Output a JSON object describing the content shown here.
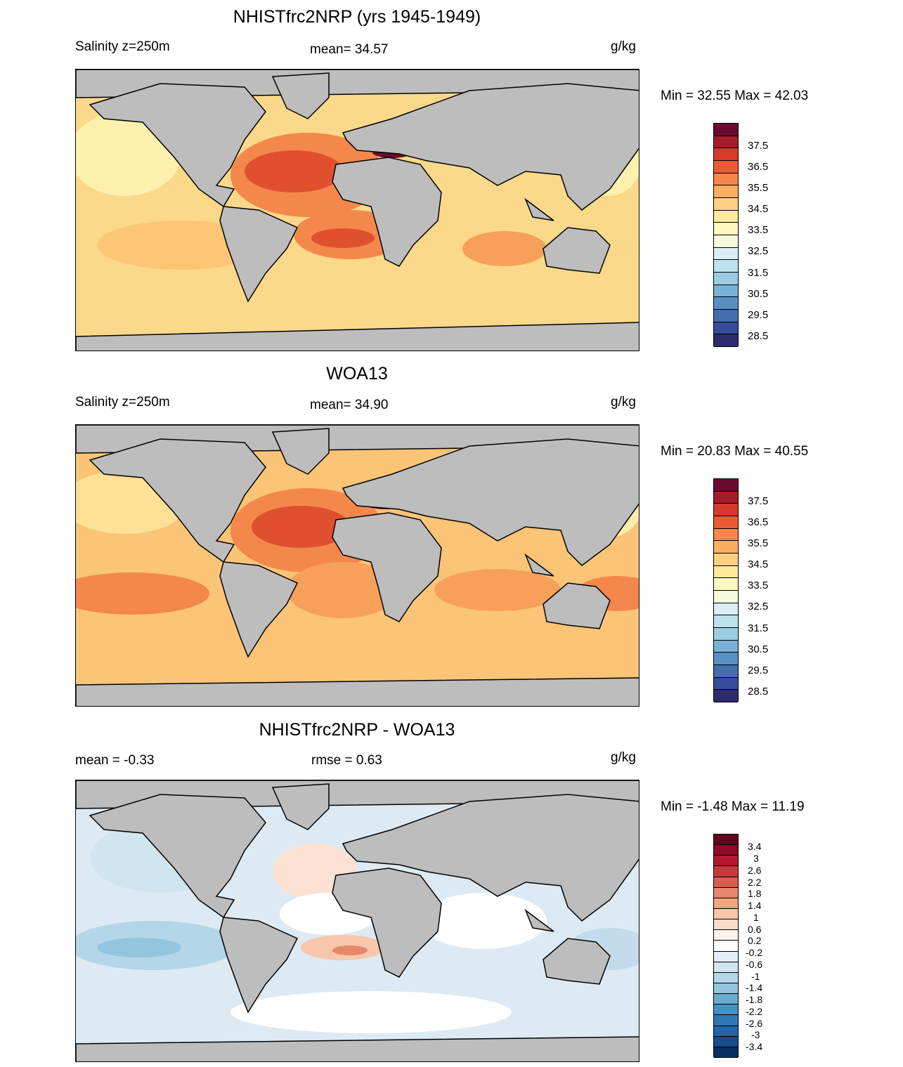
{
  "panels": [
    {
      "title": "NHISTfrc2NRP (yrs 1945-1949)",
      "left_label": "Salinity z=250m",
      "center_label": "mean=  34.57",
      "units": "g/kg",
      "minmax": "Min =  32.55 Max =  42.03",
      "colorbar": {
        "labels": [
          "37.5",
          "36.5",
          "35.5",
          "34.5",
          "33.5",
          "32.5",
          "31.5",
          "30.5",
          "29.5",
          "28.5"
        ],
        "colors": [
          "#6b0a2e",
          "#a51c2d",
          "#d73a2c",
          "#ec5a35",
          "#f6874a",
          "#fcae60",
          "#fed083",
          "#fee99d",
          "#fff8bf",
          "#f4fadb",
          "#dbeef5",
          "#bde2ef",
          "#9ccce3",
          "#79b0d6",
          "#5a8fc5",
          "#456eb1",
          "#374c9a",
          "#2e2c6c"
        ]
      },
      "map_fill": "#fcd98a"
    },
    {
      "title": "WOA13",
      "left_label": "Salinity z=250m",
      "center_label": "mean=  34.90",
      "units": "g/kg",
      "minmax": "Min =  20.83 Max =  40.55",
      "colorbar": {
        "labels": [
          "37.5",
          "36.5",
          "35.5",
          "34.5",
          "33.5",
          "32.5",
          "31.5",
          "30.5",
          "29.5",
          "28.5"
        ],
        "colors": [
          "#6b0a2e",
          "#a51c2d",
          "#d73a2c",
          "#ec5a35",
          "#f6874a",
          "#fcae60",
          "#fed083",
          "#fee99d",
          "#fff8bf",
          "#f4fadb",
          "#dbeef5",
          "#bde2ef",
          "#9ccce3",
          "#79b0d6",
          "#5a8fc5",
          "#456eb1",
          "#374c9a",
          "#2e2c6c"
        ]
      },
      "map_fill": "#fbc477"
    },
    {
      "title": "NHISTfrc2NRP - WOA13",
      "left_label": "mean =  -0.33",
      "center_label": "rmse =   0.63",
      "units": "g/kg",
      "minmax": "Min =  -1.48 Max =  11.19",
      "colorbar": {
        "labels": [
          "3.4",
          "3",
          "2.6",
          "2.2",
          "1.8",
          "1.4",
          "1",
          "0.6",
          "0.2",
          "-0.2",
          "-0.6",
          "-1",
          "-1.4",
          "-1.8",
          "-2.2",
          "-2.6",
          "-3",
          "-3.4"
        ],
        "colors": [
          "#67001f",
          "#8e0c25",
          "#b2182b",
          "#c8393e",
          "#d6604d",
          "#e6876c",
          "#f4a582",
          "#f8c6ac",
          "#fddbc7",
          "#fdf2ec",
          "#ffffff",
          "#e4eef6",
          "#d1e5f0",
          "#b4d6e8",
          "#92c5de",
          "#6aacd0",
          "#4393c3",
          "#2f78b4",
          "#2166ac",
          "#164d8a",
          "#053061"
        ]
      },
      "map_fill": "#ddeaf3"
    }
  ],
  "chart_data": [
    {
      "type": "heatmap",
      "title": "NHISTfrc2NRP (yrs 1945-1949)",
      "variable": "Salinity z=250m",
      "units": "g/kg",
      "mean": 34.57,
      "min": 32.55,
      "max": 42.03,
      "contour_levels": [
        28.5,
        29.0,
        29.5,
        30.0,
        30.5,
        31.0,
        31.5,
        32.0,
        32.5,
        33.0,
        33.5,
        34.0,
        34.5,
        35.0,
        35.5,
        36.0,
        36.5,
        37.0,
        37.5
      ]
    },
    {
      "type": "heatmap",
      "title": "WOA13",
      "variable": "Salinity z=250m",
      "units": "g/kg",
      "mean": 34.9,
      "min": 20.83,
      "max": 40.55,
      "contour_levels": [
        28.5,
        29.0,
        29.5,
        30.0,
        30.5,
        31.0,
        31.5,
        32.0,
        32.5,
        33.0,
        33.5,
        34.0,
        34.5,
        35.0,
        35.5,
        36.0,
        36.5,
        37.0,
        37.5
      ]
    },
    {
      "type": "heatmap",
      "title": "NHISTfrc2NRP - WOA13",
      "units": "g/kg",
      "mean": -0.33,
      "rmse": 0.63,
      "min": -1.48,
      "max": 11.19,
      "contour_levels": [
        -3.4,
        -3.0,
        -2.6,
        -2.2,
        -1.8,
        -1.4,
        -1.0,
        -0.6,
        -0.2,
        0.2,
        0.6,
        1.0,
        1.4,
        1.8,
        2.2,
        2.6,
        3.0,
        3.4
      ]
    }
  ]
}
